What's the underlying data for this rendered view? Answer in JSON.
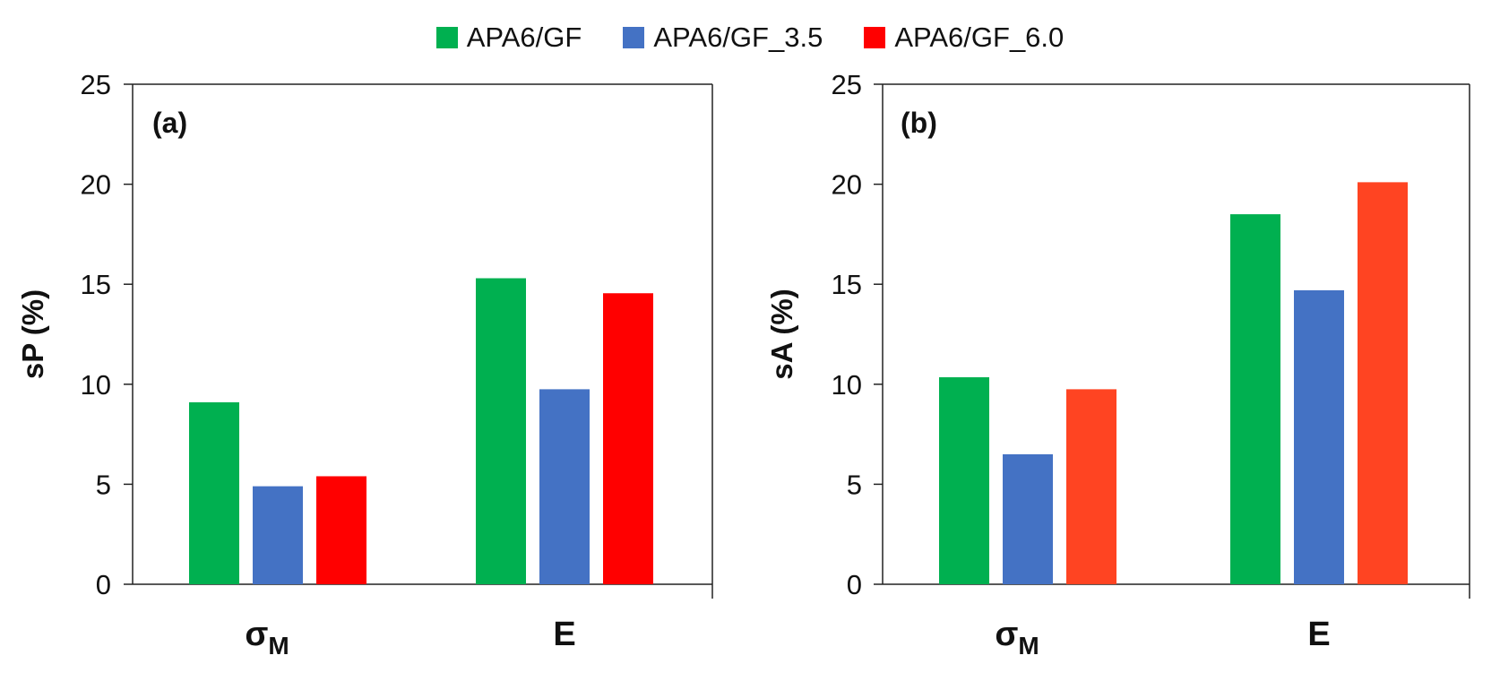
{
  "legend": [
    {
      "label": "APA6/GF",
      "color": "#00b050"
    },
    {
      "label": "APA6/GF_3.5",
      "color": "#4472c4"
    },
    {
      "label": "APA6/GF_6.0",
      "color": "#ff0000"
    }
  ],
  "chart_data": [
    {
      "type": "bar",
      "panel_label": "(a)",
      "categories": [
        "σ",
        "E"
      ],
      "category_subscripts": [
        "M",
        ""
      ],
      "ylabel": "sP (%)",
      "xlabel": "",
      "ylim": [
        0,
        25
      ],
      "yticks": [
        0,
        5,
        10,
        15,
        20,
        25
      ],
      "grid": false,
      "series": [
        {
          "name": "APA6/GF",
          "color": "#00b050",
          "values": [
            9.1,
            15.3
          ]
        },
        {
          "name": "APA6/GF_3.5",
          "color": "#4472c4",
          "values": [
            4.9,
            9.75
          ]
        },
        {
          "name": "APA6/GF_6.0",
          "color": "#ff0000",
          "values": [
            5.4,
            14.55
          ]
        }
      ]
    },
    {
      "type": "bar",
      "panel_label": "(b)",
      "categories": [
        "σ",
        "E"
      ],
      "category_subscripts": [
        "M",
        ""
      ],
      "ylabel": "sA (%)",
      "xlabel": "",
      "ylim": [
        0,
        25
      ],
      "yticks": [
        0,
        5,
        10,
        15,
        20,
        25
      ],
      "grid": false,
      "series": [
        {
          "name": "APA6/GF",
          "color": "#00b050",
          "values": [
            10.35,
            18.5
          ]
        },
        {
          "name": "APA6/GF_3.5",
          "color": "#4472c4",
          "values": [
            6.5,
            14.7
          ]
        },
        {
          "name": "APA6/GF_6.0",
          "color": "#ff4422",
          "values": [
            9.75,
            20.1
          ]
        }
      ]
    }
  ]
}
